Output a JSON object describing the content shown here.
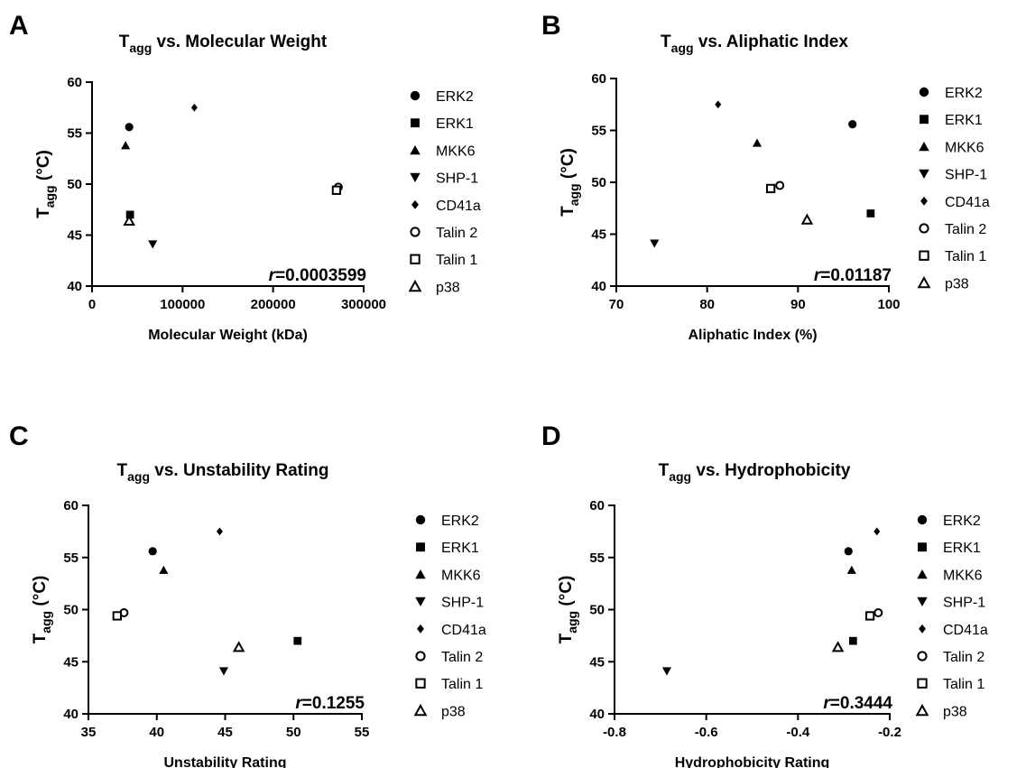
{
  "marker_shapes": {
    "ERK2": "filled-circle",
    "ERK1": "filled-square",
    "MKK6": "filled-triangle",
    "SHP-1": "filled-inverted-triangle",
    "CD41a": "filled-diamond",
    "Talin 2": "open-circle",
    "Talin 1": "open-square",
    "p38": "open-triangle"
  },
  "chart_data": [
    {
      "type": "scatter",
      "panel": "A",
      "title": "T",
      "title_sub": "agg",
      "title_rest": " vs. Molecular Weight",
      "xlabel": "Molecular Weight (kDa)",
      "ylabel": "T",
      "ylabel_sub": "agg",
      "ylabel_rest": " (°C)",
      "xlim": [
        0,
        300000
      ],
      "ylim": [
        40,
        60
      ],
      "xticks": [
        0,
        100000,
        200000,
        300000
      ],
      "xtick_labels": [
        "0",
        "100000",
        "200000",
        "300000"
      ],
      "yticks": [
        40,
        45,
        50,
        55,
        60
      ],
      "ytick_labels": [
        "40",
        "45",
        "50",
        "55",
        "60"
      ],
      "correlation_prefix": "r",
      "correlation_value": "=0.0003599",
      "legend_position": "right",
      "series": [
        {
          "name": "ERK2",
          "x": 41000,
          "y": 55.6
        },
        {
          "name": "ERK1",
          "x": 42000,
          "y": 47.0
        },
        {
          "name": "MKK6",
          "x": 37000,
          "y": 53.8
        },
        {
          "name": "SHP-1",
          "x": 67000,
          "y": 44.1
        },
        {
          "name": "CD41a",
          "x": 113000,
          "y": 57.5
        },
        {
          "name": "Talin 2",
          "x": 272000,
          "y": 49.7
        },
        {
          "name": "Talin 1",
          "x": 270000,
          "y": 49.4
        },
        {
          "name": "p38",
          "x": 41000,
          "y": 46.4
        }
      ]
    },
    {
      "type": "scatter",
      "panel": "B",
      "title": "T",
      "title_sub": "agg",
      "title_rest": " vs. Aliphatic Index",
      "xlabel": "Aliphatic Index (%)",
      "ylabel": "T",
      "ylabel_sub": "agg",
      "ylabel_rest": " (°C)",
      "xlim": [
        70,
        100
      ],
      "ylim": [
        40,
        60
      ],
      "xticks": [
        70,
        80,
        90,
        100
      ],
      "xtick_labels": [
        "70",
        "80",
        "90",
        "100"
      ],
      "yticks": [
        40,
        45,
        50,
        55,
        60
      ],
      "ytick_labels": [
        "40",
        "45",
        "50",
        "55",
        "60"
      ],
      "correlation_prefix": "r",
      "correlation_value": "=0.01187",
      "legend_position": "right",
      "series": [
        {
          "name": "ERK2",
          "x": 96.0,
          "y": 55.6
        },
        {
          "name": "ERK1",
          "x": 98.0,
          "y": 47.0
        },
        {
          "name": "MKK6",
          "x": 85.5,
          "y": 53.8
        },
        {
          "name": "SHP-1",
          "x": 74.2,
          "y": 44.1
        },
        {
          "name": "CD41a",
          "x": 81.2,
          "y": 57.5
        },
        {
          "name": "Talin 2",
          "x": 88.0,
          "y": 49.7
        },
        {
          "name": "Talin 1",
          "x": 87.0,
          "y": 49.4
        },
        {
          "name": "p38",
          "x": 91.0,
          "y": 46.4
        }
      ]
    },
    {
      "type": "scatter",
      "panel": "C",
      "title": "T",
      "title_sub": "agg",
      "title_rest": " vs. Unstability Rating",
      "xlabel": "Unstability Rating",
      "ylabel": "T",
      "ylabel_sub": "agg",
      "ylabel_rest": " (°C)",
      "xlim": [
        35,
        55
      ],
      "ylim": [
        40,
        60
      ],
      "xticks": [
        35,
        40,
        45,
        50,
        55
      ],
      "xtick_labels": [
        "35",
        "40",
        "45",
        "50",
        "55"
      ],
      "yticks": [
        40,
        45,
        50,
        55,
        60
      ],
      "ytick_labels": [
        "40",
        "45",
        "50",
        "55",
        "60"
      ],
      "correlation_prefix": "r",
      "correlation_value": "=0.1255",
      "legend_position": "right",
      "series": [
        {
          "name": "ERK2",
          "x": 39.7,
          "y": 55.6
        },
        {
          "name": "ERK1",
          "x": 50.3,
          "y": 47.0
        },
        {
          "name": "MKK6",
          "x": 40.5,
          "y": 53.8
        },
        {
          "name": "SHP-1",
          "x": 44.9,
          "y": 44.1
        },
        {
          "name": "CD41a",
          "x": 44.6,
          "y": 57.5
        },
        {
          "name": "Talin 2",
          "x": 37.6,
          "y": 49.7
        },
        {
          "name": "Talin 1",
          "x": 37.1,
          "y": 49.4
        },
        {
          "name": "p38",
          "x": 46.0,
          "y": 46.4
        }
      ]
    },
    {
      "type": "scatter",
      "panel": "D",
      "title": "T",
      "title_sub": "agg",
      "title_rest": " vs. Hydrophobicity",
      "xlabel": "Hydrophobicity Rating",
      "ylabel": "T",
      "ylabel_sub": "agg",
      "ylabel_rest": " (°C)",
      "xlim": [
        -0.8,
        -0.2
      ],
      "ylim": [
        40,
        60
      ],
      "xticks": [
        -0.8,
        -0.6,
        -0.4,
        -0.2
      ],
      "xtick_labels": [
        "-0.8",
        "-0.6",
        "-0.4",
        "-0.2"
      ],
      "yticks": [
        40,
        45,
        50,
        55,
        60
      ],
      "ytick_labels": [
        "40",
        "45",
        "50",
        "55",
        "60"
      ],
      "correlation_prefix": "r",
      "correlation_value": "=0.3444",
      "legend_position": "right",
      "series": [
        {
          "name": "ERK2",
          "x": -0.29,
          "y": 55.6
        },
        {
          "name": "ERK1",
          "x": -0.28,
          "y": 47.0
        },
        {
          "name": "MKK6",
          "x": -0.283,
          "y": 53.8
        },
        {
          "name": "SHP-1",
          "x": -0.686,
          "y": 44.1
        },
        {
          "name": "CD41a",
          "x": -0.228,
          "y": 57.5
        },
        {
          "name": "Talin 2",
          "x": -0.225,
          "y": 49.7
        },
        {
          "name": "Talin 1",
          "x": -0.243,
          "y": 49.4
        },
        {
          "name": "p38",
          "x": -0.313,
          "y": 46.4
        }
      ]
    }
  ]
}
